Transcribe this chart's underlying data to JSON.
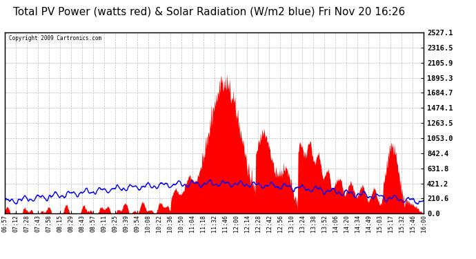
{
  "title": "Total PV Power (watts red) & Solar Radiation (W/m2 blue) Fri Nov 20 16:26",
  "copyright": "Copyright 2009 Cartronics.com",
  "yticks": [
    0.0,
    210.6,
    421.2,
    631.8,
    842.4,
    1053.0,
    1263.5,
    1474.1,
    1684.7,
    1895.3,
    2105.9,
    2316.5,
    2527.1
  ],
  "ymax": 2527.1,
  "bg_color": "#ffffff",
  "plot_bg": "#ffffff",
  "grid_color": "#bbbbbb",
  "title_fontsize": 11,
  "xtick_labels": [
    "06:57",
    "07:12",
    "07:28",
    "07:43",
    "07:58",
    "08:15",
    "08:29",
    "08:43",
    "08:57",
    "09:11",
    "09:25",
    "09:39",
    "09:54",
    "10:08",
    "10:22",
    "10:36",
    "10:50",
    "11:04",
    "11:18",
    "11:32",
    "11:46",
    "12:00",
    "12:14",
    "12:28",
    "12:42",
    "12:56",
    "13:10",
    "13:24",
    "13:38",
    "13:52",
    "14:06",
    "14:20",
    "14:34",
    "14:49",
    "15:03",
    "15:17",
    "15:32",
    "15:46",
    "16:00"
  ]
}
